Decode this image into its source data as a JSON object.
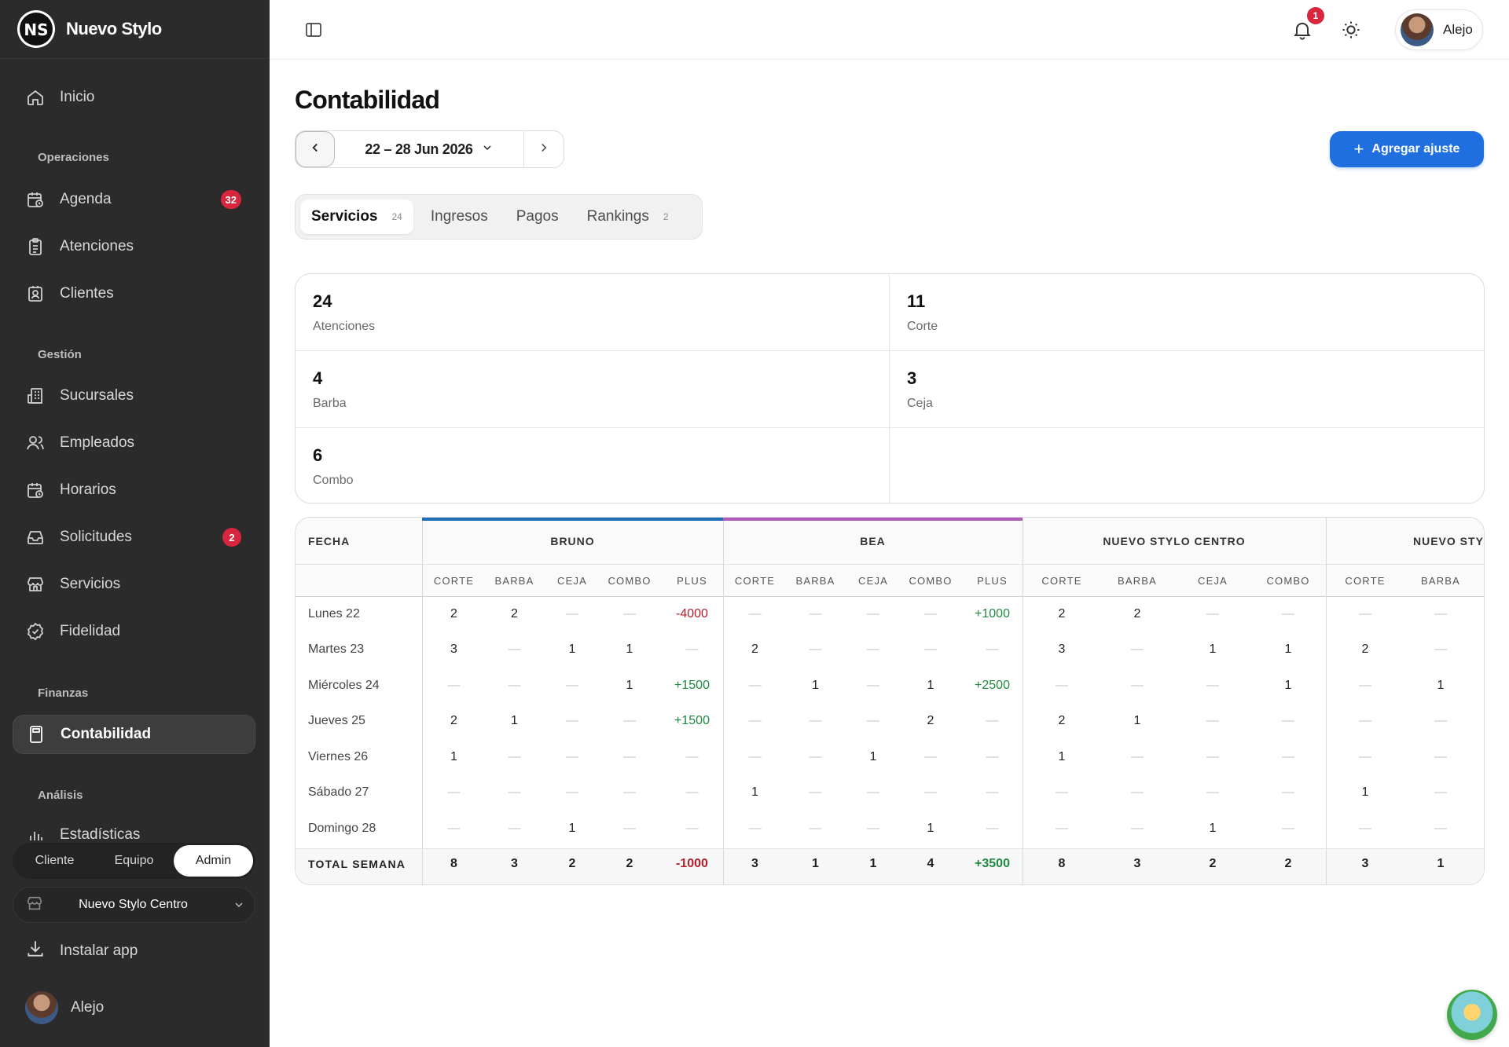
{
  "brand": {
    "name": "Nuevo Stylo",
    "logo_text": "NS"
  },
  "sidebar": {
    "home": "Inicio",
    "sections": {
      "operaciones": "Operaciones",
      "gestion": "Gestión",
      "finanzas": "Finanzas",
      "analisis": "Análisis"
    },
    "items": {
      "agenda": {
        "label": "Agenda",
        "badge": "32"
      },
      "atenciones": {
        "label": "Atenciones"
      },
      "clientes": {
        "label": "Clientes"
      },
      "sucursales": {
        "label": "Sucursales"
      },
      "empleados": {
        "label": "Empleados"
      },
      "horarios": {
        "label": "Horarios"
      },
      "solicitudes": {
        "label": "Solicitudes",
        "badge": "2"
      },
      "servicios": {
        "label": "Servicios"
      },
      "fidelidad": {
        "label": "Fidelidad"
      },
      "contabilidad": {
        "label": "Contabilidad"
      },
      "estadisticas": {
        "label": "Estadísticas"
      }
    },
    "roles": [
      "Cliente",
      "Equipo",
      "Admin"
    ],
    "active_role": "Admin",
    "branch": "Nuevo Stylo Centro",
    "install": "Instalar app",
    "user": "Alejo"
  },
  "topbar": {
    "notifications_badge": "1",
    "user": "Alejo"
  },
  "page": {
    "title": "Contabilidad",
    "week_range": "22 – 28 Jun 2026",
    "add_button": "Agregar ajuste"
  },
  "tabs": [
    {
      "label": "Servicios",
      "count": "24"
    },
    {
      "label": "Ingresos",
      "count": ""
    },
    {
      "label": "Pagos",
      "count": ""
    },
    {
      "label": "Rankings",
      "count": "2"
    }
  ],
  "stats": [
    {
      "value": "24",
      "label": "Atenciones"
    },
    {
      "value": "11",
      "label": "Corte"
    },
    {
      "value": "4",
      "label": "Barba"
    },
    {
      "value": "3",
      "label": "Ceja"
    },
    {
      "value": "6",
      "label": "Combo"
    }
  ],
  "table": {
    "date_header": "FECHA",
    "groups": [
      {
        "name": "BRUNO",
        "accent": "#1e6fb5",
        "cols": [
          "CORTE",
          "BARBA",
          "CEJA",
          "COMBO",
          "PLUS"
        ]
      },
      {
        "name": "BEA",
        "accent": "#b05bb8",
        "cols": [
          "CORTE",
          "BARBA",
          "CEJA",
          "COMBO",
          "PLUS"
        ]
      },
      {
        "name": "NUEVO STYLO CENTRO",
        "accent": "",
        "cols": [
          "CORTE",
          "BARBA",
          "CEJA",
          "COMBO"
        ]
      },
      {
        "name": "NUEVO STYLO",
        "accent": "",
        "cols": [
          "CORTE",
          "BARBA"
        ]
      }
    ],
    "rows": [
      {
        "date": "Lunes 22",
        "values": [
          [
            "2",
            "2",
            "—",
            "—",
            "-4000"
          ],
          [
            "—",
            "—",
            "—",
            "—",
            "+1000"
          ],
          [
            "2",
            "2",
            "—",
            "—"
          ],
          [
            "—",
            "—"
          ]
        ]
      },
      {
        "date": "Martes 23",
        "values": [
          [
            "3",
            "—",
            "1",
            "1",
            "—"
          ],
          [
            "2",
            "—",
            "—",
            "—",
            "—"
          ],
          [
            "3",
            "—",
            "1",
            "1"
          ],
          [
            "2",
            "—"
          ]
        ]
      },
      {
        "date": "Miércoles 24",
        "values": [
          [
            "—",
            "—",
            "—",
            "1",
            "+1500"
          ],
          [
            "—",
            "1",
            "—",
            "1",
            "+2500"
          ],
          [
            "—",
            "—",
            "—",
            "1"
          ],
          [
            "—",
            "1"
          ]
        ]
      },
      {
        "date": "Jueves 25",
        "values": [
          [
            "2",
            "1",
            "—",
            "—",
            "+1500"
          ],
          [
            "—",
            "—",
            "—",
            "2",
            "—"
          ],
          [
            "2",
            "1",
            "—",
            "—"
          ],
          [
            "—",
            "—"
          ]
        ]
      },
      {
        "date": "Viernes 26",
        "values": [
          [
            "1",
            "—",
            "—",
            "—",
            "—"
          ],
          [
            "—",
            "—",
            "1",
            "—",
            "—"
          ],
          [
            "1",
            "—",
            "—",
            "—"
          ],
          [
            "—",
            "—"
          ]
        ]
      },
      {
        "date": "Sábado 27",
        "values": [
          [
            "—",
            "—",
            "—",
            "—",
            "—"
          ],
          [
            "1",
            "—",
            "—",
            "—",
            "—"
          ],
          [
            "—",
            "—",
            "—",
            "—"
          ],
          [
            "1",
            "—"
          ]
        ]
      },
      {
        "date": "Domingo 28",
        "values": [
          [
            "—",
            "—",
            "1",
            "—",
            "—"
          ],
          [
            "—",
            "—",
            "—",
            "1",
            "—"
          ],
          [
            "—",
            "—",
            "1",
            "—"
          ],
          [
            "—",
            "—"
          ]
        ]
      }
    ],
    "total": {
      "date": "TOTAL SEMANA",
      "values": [
        [
          "8",
          "3",
          "2",
          "2",
          "-1000"
        ],
        [
          "3",
          "1",
          "1",
          "4",
          "+3500"
        ],
        [
          "8",
          "3",
          "2",
          "2"
        ],
        [
          "3",
          "1"
        ]
      ]
    }
  }
}
